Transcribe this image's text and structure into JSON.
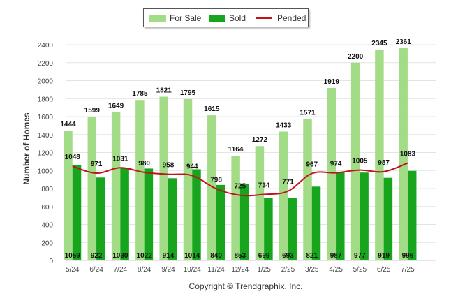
{
  "chart_data": {
    "type": "bar",
    "title": "",
    "xlabel": "",
    "ylabel": "Number of Homes",
    "ylim": [
      0,
      2400
    ],
    "yticks": [
      0,
      200,
      400,
      600,
      800,
      1000,
      1200,
      1400,
      1600,
      1800,
      2000,
      2200,
      2400
    ],
    "categories": [
      "5/24",
      "6/24",
      "7/24",
      "8/24",
      "9/24",
      "10/24",
      "11/24",
      "12/24",
      "1/25",
      "2/25",
      "3/25",
      "4/25",
      "5/25",
      "6/25",
      "7/25"
    ],
    "series": [
      {
        "name": "For Sale",
        "type": "bar",
        "color": "#a3dc86",
        "values": [
          1444,
          1599,
          1649,
          1785,
          1821,
          1795,
          1615,
          1164,
          1272,
          1433,
          1571,
          1919,
          2200,
          2345,
          2361
        ]
      },
      {
        "name": "Sold",
        "type": "bar",
        "color": "#16a51d",
        "values": [
          1059,
          922,
          1030,
          1022,
          914,
          1014,
          840,
          853,
          699,
          693,
          821,
          987,
          977,
          919,
          996
        ]
      },
      {
        "name": "Pended",
        "type": "line",
        "color": "#c0141a",
        "values": [
          1048,
          971,
          1031,
          980,
          958,
          944,
          798,
          725,
          734,
          771,
          967,
          974,
          1005,
          987,
          1083
        ]
      }
    ],
    "grid": true,
    "legend": "top-center"
  },
  "legend": {
    "for_sale": "For Sale",
    "sold": "Sold",
    "pended": "Pended"
  },
  "copyright": "Copyright © Trendgraphix, Inc."
}
